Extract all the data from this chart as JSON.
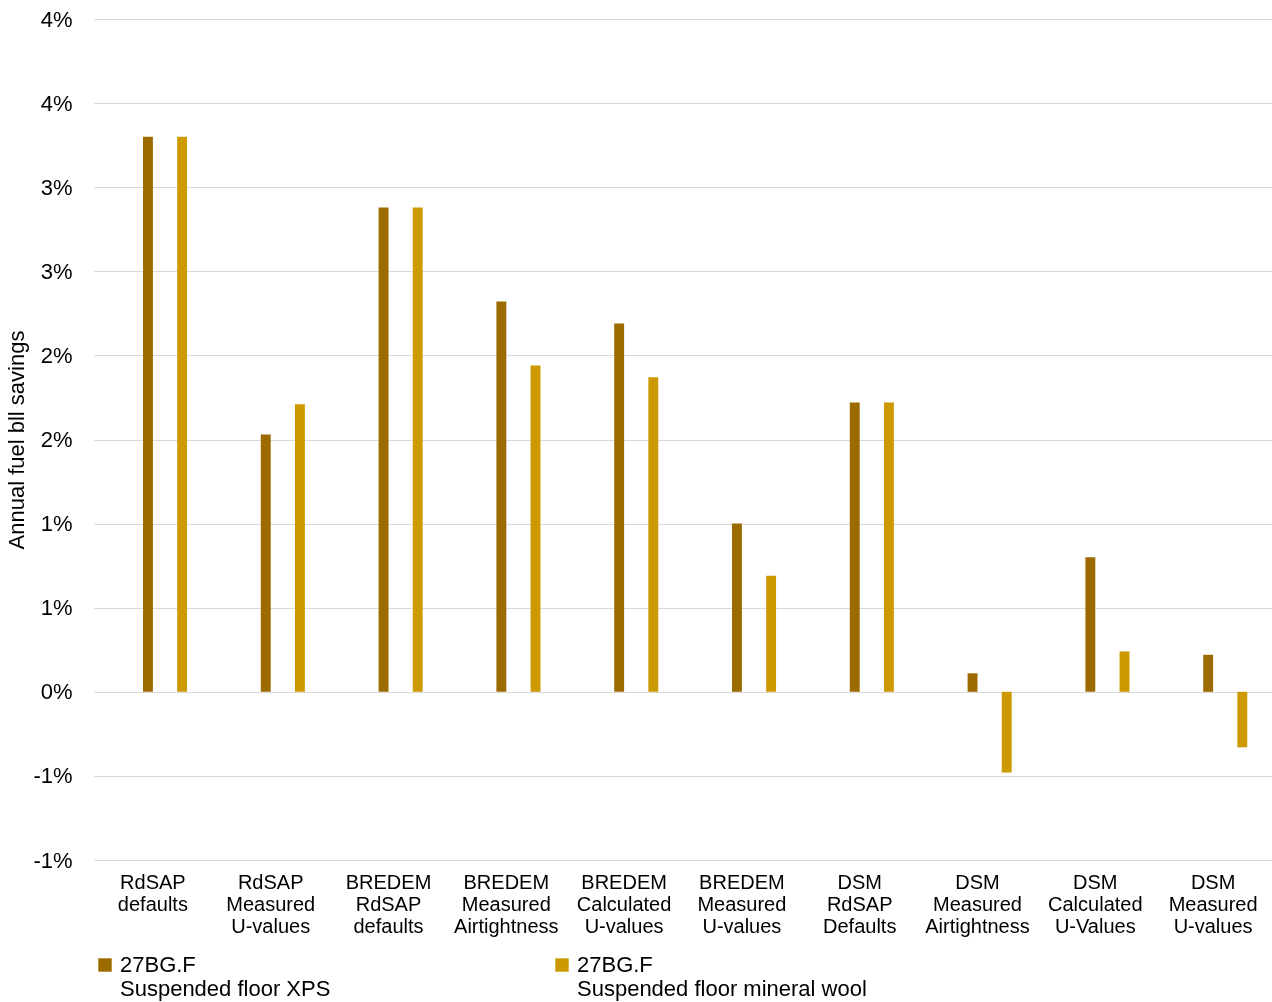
{
  "chart_data": {
    "type": "bar",
    "ylabel": "Annual fuel bll savings",
    "categories": [
      "RdSAP\ndefaults",
      "RdSAP\nMeasured\nU-values",
      "BREDEM\nRdSAP\ndefaults",
      "BREDEM\nMeasured\nAirtightness",
      "BREDEM\nCalculated\nU-values",
      "BREDEM\nMeasured\nU-values",
      "DSM\nRdSAP\nDefaults",
      "DSM\nMeasured\nAirtightness",
      "DSM\nCalculated\nU-Values",
      "DSM\nMeasured\nU-values"
    ],
    "series": [
      {
        "name": "27BG.F\nSuspended floor XPS",
        "color": "#9c6b00",
        "values": [
          3.3,
          1.53,
          2.88,
          2.32,
          2.19,
          1.0,
          1.72,
          0.11,
          0.8,
          0.22
        ]
      },
      {
        "name": "27BG.F\nSuspended floor mineral wool",
        "color": "#cc9900",
        "values": [
          3.3,
          1.71,
          2.88,
          1.94,
          1.87,
          0.69,
          1.72,
          -0.48,
          0.24,
          -0.33
        ]
      }
    ],
    "ylim": [
      -1,
      4
    ],
    "yticks": [
      {
        "value": -1,
        "label": "-1%"
      },
      {
        "value": -0.5,
        "label": "-1%"
      },
      {
        "value": 0,
        "label": "0%"
      },
      {
        "value": 0.5,
        "label": "1%"
      },
      {
        "value": 1,
        "label": "1%"
      },
      {
        "value": 1.5,
        "label": "2%"
      },
      {
        "value": 2,
        "label": "2%"
      },
      {
        "value": 2.5,
        "label": "3%"
      },
      {
        "value": 3,
        "label": "3%"
      },
      {
        "value": 3.5,
        "label": "4%"
      },
      {
        "value": 4,
        "label": "4%"
      }
    ],
    "grid": "y",
    "legend": "bottom"
  }
}
